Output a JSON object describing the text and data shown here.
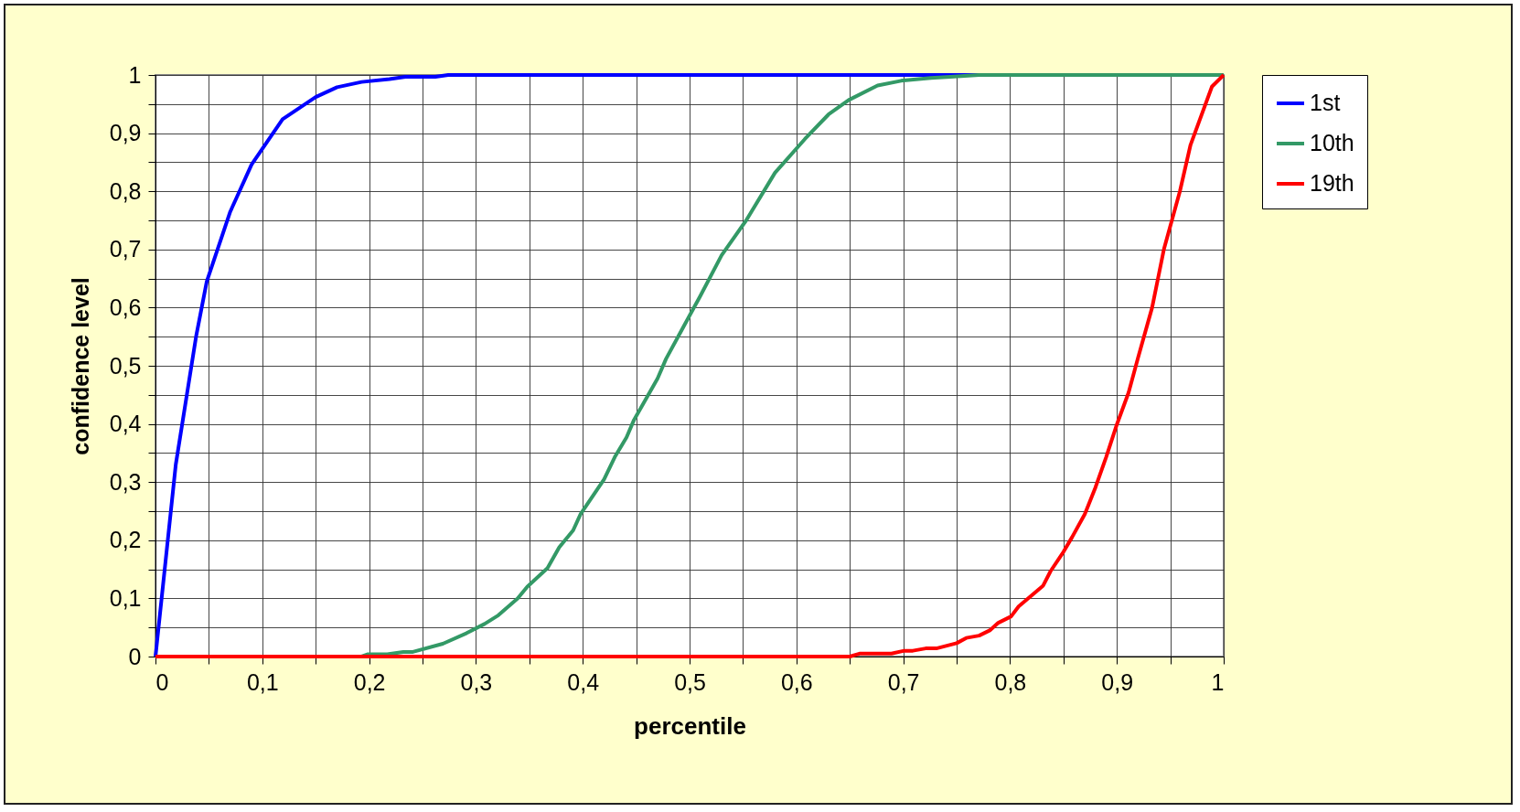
{
  "chart_data": {
    "type": "line",
    "xlabel": "percentile",
    "ylabel": "confidence level",
    "xlim": [
      0,
      1
    ],
    "ylim": [
      0,
      1
    ],
    "xticks": [
      0,
      {
        "value": 0.05,
        "label": null
      },
      {
        "value": 0.1,
        "label": "0,1"
      },
      {
        "value": 0.15,
        "label": null
      },
      {
        "value": 0.2,
        "label": "0,2"
      },
      {
        "value": 0.25,
        "label": null
      },
      {
        "value": 0.3,
        "label": "0,3"
      },
      {
        "value": 0.35,
        "label": null
      },
      {
        "value": 0.4,
        "label": "0,4"
      },
      {
        "value": 0.45,
        "label": null
      },
      {
        "value": 0.5,
        "label": "0,5"
      },
      {
        "value": 0.55,
        "label": null
      },
      {
        "value": 0.6,
        "label": "0,6"
      },
      {
        "value": 0.65,
        "label": null
      },
      {
        "value": 0.7,
        "label": "0,7"
      },
      {
        "value": 0.75,
        "label": null
      },
      {
        "value": 0.8,
        "label": "0,8"
      },
      {
        "value": 0.85,
        "label": null
      },
      {
        "value": 0.9,
        "label": "0,9"
      },
      {
        "value": 0.95,
        "label": null
      },
      1
    ],
    "yticks": [
      0,
      {
        "value": 0.05,
        "label": null
      },
      {
        "value": 0.1,
        "label": "0,1"
      },
      {
        "value": 0.15,
        "label": null
      },
      {
        "value": 0.2,
        "label": "0,2"
      },
      {
        "value": 0.25,
        "label": null
      },
      {
        "value": 0.3,
        "label": "0,3"
      },
      {
        "value": 0.35,
        "label": null
      },
      {
        "value": 0.4,
        "label": "0,4"
      },
      {
        "value": 0.45,
        "label": null
      },
      {
        "value": 0.5,
        "label": "0,5"
      },
      {
        "value": 0.55,
        "label": null
      },
      {
        "value": 0.6,
        "label": "0,6"
      },
      {
        "value": 0.65,
        "label": null
      },
      {
        "value": 0.7,
        "label": "0,7"
      },
      {
        "value": 0.75,
        "label": null
      },
      {
        "value": 0.8,
        "label": "0,8"
      },
      {
        "value": 0.85,
        "label": null
      },
      {
        "value": 0.9,
        "label": "0,9"
      },
      {
        "value": 0.95,
        "label": null
      },
      1
    ],
    "grid": true,
    "legend": "right",
    "series": [
      {
        "name": "1st",
        "color": "#0000ff",
        "x": [
          0,
          0.019,
          0.038,
          0.048,
          0.07,
          0.09,
          0.119,
          0.15,
          0.17,
          0.193,
          0.219,
          0.234,
          0.262,
          0.274,
          1
        ],
        "values": [
          0,
          0.33,
          0.55,
          0.645,
          0.765,
          0.846,
          0.924,
          0.962,
          0.979,
          0.988,
          0.993,
          0.997,
          0.997,
          1,
          1
        ]
      },
      {
        "name": "10th",
        "color": "#339966",
        "x": [
          0,
          0.193,
          0.199,
          0.217,
          0.232,
          0.241,
          0.269,
          0.291,
          0.308,
          0.321,
          0.339,
          0.348,
          0.367,
          0.378,
          0.391,
          0.398,
          0.42,
          0.43,
          0.441,
          0.448,
          0.47,
          0.478,
          0.494,
          0.51,
          0.53,
          0.553,
          0.58,
          0.608,
          0.63,
          0.649,
          0.676,
          0.698,
          0.726,
          0.744,
          0.771,
          1
        ],
        "values": [
          0,
          0,
          0.004,
          0.004,
          0.008,
          0.008,
          0.022,
          0.04,
          0.056,
          0.071,
          0.1,
          0.12,
          0.152,
          0.188,
          0.217,
          0.245,
          0.305,
          0.343,
          0.377,
          0.407,
          0.478,
          0.512,
          0.566,
          0.62,
          0.69,
          0.75,
          0.832,
          0.89,
          0.932,
          0.957,
          0.982,
          0.99,
          0.995,
          0.997,
          1,
          1
        ]
      },
      {
        "name": "19th",
        "color": "#ff0000",
        "x": [
          0,
          0.65,
          0.659,
          0.689,
          0.701,
          0.709,
          0.721,
          0.731,
          0.75,
          0.759,
          0.771,
          0.781,
          0.789,
          0.801,
          0.808,
          0.831,
          0.838,
          0.85,
          0.858,
          0.87,
          0.88,
          0.89,
          0.9,
          0.911,
          0.92,
          0.933,
          0.944,
          0.959,
          0.969,
          0.989,
          1
        ],
        "values": [
          0,
          0,
          0.005,
          0.005,
          0.01,
          0.01,
          0.014,
          0.014,
          0.023,
          0.032,
          0.036,
          0.045,
          0.058,
          0.069,
          0.086,
          0.122,
          0.147,
          0.18,
          0.205,
          0.245,
          0.291,
          0.343,
          0.399,
          0.454,
          0.515,
          0.6,
          0.7,
          0.8,
          0.88,
          0.98,
          1
        ]
      }
    ]
  }
}
